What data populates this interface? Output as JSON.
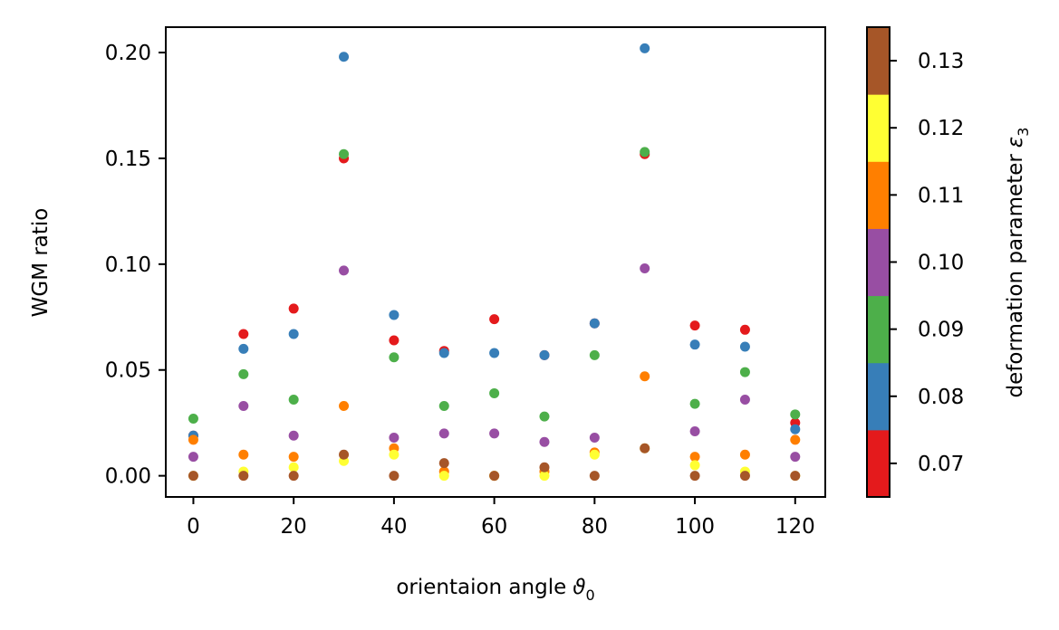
{
  "chart_data": {
    "type": "scatter",
    "xlabel": "orientaion angle",
    "xlabel_symbol": "ϑ",
    "xlabel_subscript": "0",
    "ylabel": "WGM ratio",
    "xlim": [
      -5.5,
      126
    ],
    "ylim": [
      -0.01,
      0.212
    ],
    "xticks": [
      0,
      20,
      40,
      60,
      80,
      100,
      120
    ],
    "xtick_labels": [
      "0",
      "20",
      "40",
      "60",
      "80",
      "100",
      "120"
    ],
    "yticks": [
      0.0,
      0.05,
      0.1,
      0.15,
      0.2
    ],
    "ytick_labels": [
      "0.00",
      "0.05",
      "0.10",
      "0.15",
      "0.20"
    ],
    "x": [
      0,
      10,
      20,
      30,
      40,
      50,
      60,
      70,
      80,
      90,
      100,
      110,
      120
    ],
    "series": [
      {
        "color": "#e41a1c",
        "colorbar_value": 0.07,
        "values": [
          0.019,
          0.067,
          0.079,
          0.15,
          0.064,
          0.059,
          0.074,
          0.057,
          0.072,
          0.152,
          0.071,
          0.069,
          0.025
        ]
      },
      {
        "color": "#377eb8",
        "colorbar_value": 0.08,
        "values": [
          0.019,
          0.06,
          0.067,
          0.198,
          0.076,
          0.058,
          0.058,
          0.057,
          0.072,
          0.202,
          0.062,
          0.061,
          0.022
        ]
      },
      {
        "color": "#4daf4a",
        "colorbar_value": 0.09,
        "values": [
          0.027,
          0.048,
          0.036,
          0.152,
          0.056,
          0.033,
          0.039,
          0.028,
          0.057,
          0.153,
          0.034,
          0.049,
          0.029
        ]
      },
      {
        "color": "#984ea3",
        "colorbar_value": 0.1,
        "values": [
          0.009,
          0.033,
          0.019,
          0.097,
          0.018,
          0.02,
          0.02,
          0.016,
          0.018,
          0.098,
          0.021,
          0.036,
          0.009
        ]
      },
      {
        "color": "#ff7f00",
        "colorbar_value": 0.11,
        "values": [
          0.017,
          0.01,
          0.009,
          0.033,
          0.013,
          0.002,
          0.0,
          0.002,
          0.011,
          0.047,
          0.009,
          0.01,
          0.017
        ]
      },
      {
        "color": "#ffff33",
        "colorbar_value": 0.12,
        "values": [
          0.0,
          0.002,
          0.004,
          0.007,
          0.01,
          0.0,
          0.0,
          0.0,
          0.01,
          0.013,
          0.005,
          0.002,
          0.0
        ]
      },
      {
        "color": "#a65628",
        "colorbar_value": 0.13,
        "values": [
          0.0,
          0.0,
          0.0,
          0.01,
          0.0,
          0.006,
          0.0,
          0.004,
          0.0,
          0.013,
          0.0,
          0.0,
          0.0
        ]
      }
    ],
    "colorbar": {
      "label": "deformation parameter",
      "label_symbol": "ε",
      "label_subscript": "3",
      "range": [
        0.065,
        0.135
      ],
      "ticks": [
        0.07,
        0.08,
        0.09,
        0.1,
        0.11,
        0.12,
        0.13
      ],
      "tick_labels": [
        "0.07",
        "0.08",
        "0.09",
        "0.10",
        "0.11",
        "0.12",
        "0.13"
      ],
      "colors": [
        "#e41a1c",
        "#377eb8",
        "#4daf4a",
        "#984ea3",
        "#ff7f00",
        "#ffff33",
        "#a65628"
      ]
    },
    "legend": "none",
    "grid": false
  }
}
